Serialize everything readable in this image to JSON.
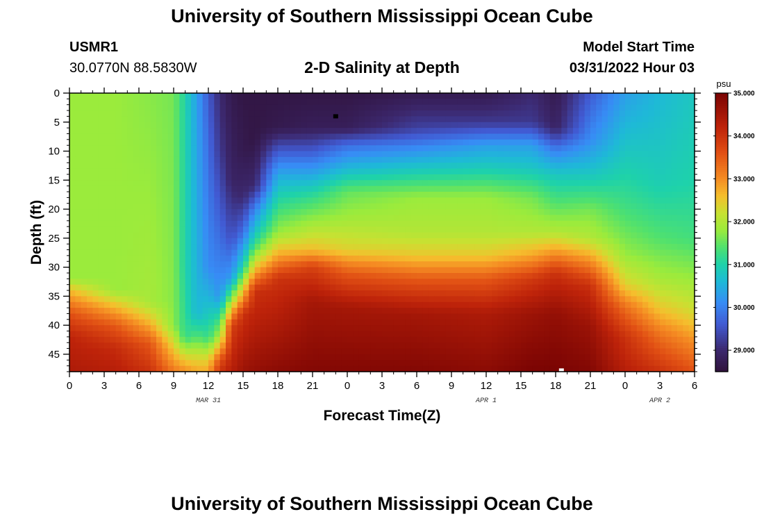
{
  "page": {
    "title": "University of Southern Mississippi Ocean Cube",
    "footer_title": "University of Southern Mississippi Ocean Cube",
    "station_id": "USMR1",
    "station_coords": "30.0770N  88.5830W",
    "plot_title": "2-D Salinity at Depth",
    "model_start_label": "Model Start Time",
    "model_start_value": "03/31/2022 Hour 03"
  },
  "chart_data": {
    "type": "heatmap",
    "title": "2-D Salinity at Depth",
    "xlabel": "Forecast Time(Z)",
    "ylabel": "Depth (ft)",
    "x_range_hours": [
      0,
      54
    ],
    "y_range_ft": [
      0,
      48
    ],
    "x_ticks": [
      0,
      3,
      6,
      9,
      12,
      15,
      18,
      21,
      24,
      27,
      30,
      33,
      36,
      39,
      42,
      45,
      48,
      51,
      54
    ],
    "x_tick_labels": [
      "0",
      "3",
      "6",
      "9",
      "12",
      "15",
      "18",
      "21",
      "0",
      "3",
      "6",
      "9",
      "12",
      "15",
      "18",
      "21",
      "0",
      "3",
      "6"
    ],
    "y_ticks": [
      0,
      5,
      10,
      15,
      20,
      25,
      30,
      35,
      40,
      45
    ],
    "y_tick_labels": [
      "0",
      "5",
      "10",
      "15",
      "20",
      "25",
      "30",
      "35",
      "40",
      "45"
    ],
    "date_labels": [
      {
        "text": "MAR 31",
        "x": 12
      },
      {
        "text": "APR 1",
        "x": 36
      },
      {
        "text": "APR 2",
        "x": 51
      }
    ],
    "colorbar": {
      "unit": "psu",
      "min": 28.5,
      "max": 35.0,
      "ticks": [
        35.0,
        34.0,
        33.0,
        32.0,
        31.0,
        30.0,
        29.0
      ],
      "tick_labels": [
        "35.000",
        "34.000",
        "33.000",
        "32.000",
        "31.000",
        "30.000",
        "29.000"
      ]
    },
    "markers": [
      {
        "x": 23,
        "y": 4,
        "color": "#000000"
      },
      {
        "x": 42.5,
        "y": 47.8,
        "color": "#ffffff"
      }
    ],
    "salinity_profiles": [
      {
        "t": 0,
        "s": [
          [
            0,
            31.8
          ],
          [
            32,
            31.8
          ],
          [
            34,
            32.6
          ],
          [
            38,
            33.6
          ],
          [
            42,
            34.2
          ],
          [
            48,
            34.4
          ]
        ]
      },
      {
        "t": 4,
        "s": [
          [
            0,
            31.8
          ],
          [
            34,
            31.8
          ],
          [
            36,
            32.4
          ],
          [
            40,
            33.5
          ],
          [
            44,
            34.1
          ],
          [
            48,
            34.3
          ]
        ]
      },
      {
        "t": 7,
        "s": [
          [
            0,
            31.7
          ],
          [
            36,
            31.9
          ],
          [
            39,
            32.5
          ],
          [
            43,
            33.5
          ],
          [
            48,
            34.0
          ]
        ]
      },
      {
        "t": 9,
        "s": [
          [
            0,
            31.6
          ],
          [
            40,
            31.7
          ],
          [
            44,
            32.5
          ],
          [
            48,
            33.2
          ]
        ]
      },
      {
        "t": 10,
        "s": [
          [
            0,
            31.0
          ],
          [
            30,
            31.0
          ],
          [
            42,
            31.2
          ],
          [
            46,
            32.5
          ],
          [
            48,
            33.0
          ]
        ]
      },
      {
        "t": 11,
        "s": [
          [
            0,
            30.3
          ],
          [
            38,
            30.6
          ],
          [
            42,
            31.4
          ],
          [
            46,
            32.4
          ],
          [
            48,
            32.8
          ]
        ]
      },
      {
        "t": 12,
        "s": [
          [
            0,
            29.6
          ],
          [
            10,
            29.8
          ],
          [
            30,
            30.1
          ],
          [
            42,
            31.2
          ],
          [
            46,
            32.4
          ],
          [
            48,
            32.8
          ]
        ]
      },
      {
        "t": 13,
        "s": [
          [
            0,
            29.0
          ],
          [
            10,
            29.2
          ],
          [
            20,
            29.6
          ],
          [
            35,
            30.2
          ],
          [
            42,
            32.0
          ],
          [
            46,
            33.6
          ],
          [
            48,
            34.0
          ]
        ]
      },
      {
        "t": 14,
        "s": [
          [
            0,
            28.7
          ],
          [
            15,
            28.9
          ],
          [
            25,
            29.5
          ],
          [
            32,
            30.3
          ],
          [
            36,
            32.0
          ],
          [
            40,
            33.8
          ],
          [
            48,
            34.3
          ]
        ]
      },
      {
        "t": 15,
        "s": [
          [
            0,
            28.6
          ],
          [
            10,
            28.7
          ],
          [
            18,
            29.0
          ],
          [
            24,
            29.8
          ],
          [
            30,
            31.0
          ],
          [
            34,
            32.5
          ],
          [
            38,
            34.0
          ],
          [
            48,
            34.6
          ]
        ]
      },
      {
        "t": 16,
        "s": [
          [
            0,
            28.6
          ],
          [
            8,
            28.6
          ],
          [
            16,
            29.0
          ],
          [
            20,
            30.0
          ],
          [
            26,
            31.2
          ],
          [
            30,
            32.5
          ],
          [
            34,
            34.0
          ],
          [
            48,
            34.7
          ]
        ]
      },
      {
        "t": 18,
        "s": [
          [
            0,
            28.6
          ],
          [
            6,
            28.7
          ],
          [
            10,
            29.6
          ],
          [
            14,
            30.4
          ],
          [
            18,
            31.0
          ],
          [
            24,
            31.8
          ],
          [
            28,
            32.8
          ],
          [
            32,
            34.0
          ],
          [
            48,
            34.8
          ]
        ]
      },
      {
        "t": 21,
        "s": [
          [
            0,
            28.6
          ],
          [
            6,
            28.8
          ],
          [
            10,
            29.6
          ],
          [
            14,
            30.4
          ],
          [
            18,
            31.2
          ],
          [
            22,
            31.8
          ],
          [
            27,
            32.6
          ],
          [
            30,
            33.8
          ],
          [
            36,
            34.5
          ],
          [
            48,
            34.9
          ]
        ]
      },
      {
        "t": 24,
        "s": [
          [
            0,
            28.6
          ],
          [
            6,
            28.8
          ],
          [
            9,
            29.8
          ],
          [
            13,
            30.6
          ],
          [
            17,
            31.5
          ],
          [
            22,
            31.9
          ],
          [
            27,
            32.4
          ],
          [
            31,
            33.5
          ],
          [
            37,
            34.5
          ],
          [
            48,
            34.9
          ]
        ]
      },
      {
        "t": 30,
        "s": [
          [
            0,
            28.7
          ],
          [
            6,
            29.3
          ],
          [
            10,
            30.2
          ],
          [
            14,
            31.0
          ],
          [
            18,
            31.8
          ],
          [
            24,
            32.0
          ],
          [
            28,
            32.5
          ],
          [
            32,
            33.5
          ],
          [
            38,
            34.5
          ],
          [
            48,
            34.9
          ]
        ]
      },
      {
        "t": 36,
        "s": [
          [
            0,
            28.7
          ],
          [
            5,
            29.2
          ],
          [
            9,
            30.3
          ],
          [
            13,
            30.9
          ],
          [
            18,
            31.8
          ],
          [
            24,
            32.0
          ],
          [
            28,
            32.5
          ],
          [
            32,
            33.5
          ],
          [
            38,
            34.4
          ],
          [
            48,
            34.8
          ]
        ]
      },
      {
        "t": 40,
        "s": [
          [
            0,
            29.0
          ],
          [
            5,
            29.2
          ],
          [
            9,
            30.3
          ],
          [
            13,
            30.8
          ],
          [
            18,
            31.6
          ],
          [
            24,
            32.0
          ],
          [
            28,
            32.8
          ],
          [
            32,
            33.9
          ],
          [
            38,
            34.6
          ],
          [
            48,
            35.0
          ]
        ]
      },
      {
        "t": 42,
        "s": [
          [
            0,
            28.7
          ],
          [
            6,
            28.9
          ],
          [
            10,
            30.0
          ],
          [
            14,
            30.8
          ],
          [
            19,
            31.4
          ],
          [
            24,
            32.0
          ],
          [
            27,
            32.8
          ],
          [
            31,
            34.0
          ],
          [
            38,
            34.7
          ],
          [
            48,
            35.0
          ]
        ]
      },
      {
        "t": 45,
        "s": [
          [
            0,
            29.6
          ],
          [
            8,
            30.1
          ],
          [
            14,
            30.8
          ],
          [
            20,
            31.6
          ],
          [
            25,
            32.0
          ],
          [
            29,
            33.0
          ],
          [
            33,
            34.0
          ],
          [
            40,
            34.6
          ],
          [
            48,
            34.9
          ]
        ]
      },
      {
        "t": 48,
        "s": [
          [
            0,
            30.3
          ],
          [
            10,
            30.8
          ],
          [
            20,
            31.3
          ],
          [
            28,
            31.8
          ],
          [
            33,
            32.4
          ],
          [
            37,
            33.3
          ],
          [
            42,
            34.0
          ],
          [
            48,
            34.3
          ]
        ]
      },
      {
        "t": 51,
        "s": [
          [
            0,
            30.6
          ],
          [
            15,
            30.9
          ],
          [
            25,
            31.4
          ],
          [
            32,
            31.9
          ],
          [
            37,
            32.5
          ],
          [
            42,
            33.3
          ],
          [
            48,
            34.0
          ]
        ]
      },
      {
        "t": 54,
        "s": [
          [
            0,
            30.8
          ],
          [
            15,
            31.0
          ],
          [
            25,
            31.3
          ],
          [
            32,
            31.8
          ],
          [
            38,
            32.3
          ],
          [
            43,
            33.0
          ],
          [
            48,
            33.6
          ]
        ]
      }
    ]
  }
}
